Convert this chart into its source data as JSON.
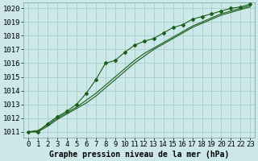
{
  "title": "Graphe pression niveau de la mer (hPa)",
  "bg_color": "#cce8e8",
  "grid_color": "#aacccc",
  "line_color": "#1a5e1a",
  "xlim_min": -0.5,
  "xlim_max": 23.5,
  "ylim_min": 1010.6,
  "ylim_max": 1020.4,
  "yticks": [
    1011,
    1012,
    1013,
    1014,
    1015,
    1016,
    1017,
    1018,
    1019,
    1020
  ],
  "xticks": [
    0,
    1,
    2,
    3,
    4,
    5,
    6,
    7,
    8,
    9,
    10,
    11,
    12,
    13,
    14,
    15,
    16,
    17,
    18,
    19,
    20,
    21,
    22,
    23
  ],
  "line_marker_x": [
    0,
    1,
    2,
    3,
    4,
    5,
    6,
    7,
    8,
    9,
    10,
    11,
    12,
    13,
    14,
    15,
    16,
    17,
    18,
    19,
    20,
    21,
    22,
    23
  ],
  "line_marker_y": [
    1011.0,
    1011.0,
    1011.6,
    1012.1,
    1012.5,
    1013.0,
    1013.8,
    1014.8,
    1016.0,
    1016.2,
    1016.8,
    1017.3,
    1017.6,
    1017.8,
    1018.2,
    1018.6,
    1018.8,
    1019.2,
    1019.4,
    1019.6,
    1019.8,
    1020.0,
    1020.1,
    1020.3
  ],
  "line_smooth1_x": [
    0,
    1,
    2,
    3,
    4,
    5,
    6,
    7,
    8,
    9,
    10,
    11,
    12,
    13,
    14,
    15,
    16,
    17,
    18,
    19,
    20,
    21,
    22,
    23
  ],
  "line_smooth1_y": [
    1011.0,
    1011.0,
    1011.4,
    1011.9,
    1012.3,
    1012.7,
    1013.1,
    1013.6,
    1014.2,
    1014.8,
    1015.4,
    1016.0,
    1016.5,
    1017.0,
    1017.4,
    1017.8,
    1018.2,
    1018.6,
    1018.9,
    1019.2,
    1019.5,
    1019.7,
    1019.9,
    1020.1
  ],
  "line_smooth2_x": [
    0,
    1,
    2,
    3,
    4,
    5,
    6,
    7,
    8,
    9,
    10,
    11,
    12,
    13,
    14,
    15,
    16,
    17,
    18,
    19,
    20,
    21,
    22,
    23
  ],
  "line_smooth2_y": [
    1011.0,
    1011.1,
    1011.5,
    1012.0,
    1012.4,
    1012.8,
    1013.3,
    1013.8,
    1014.4,
    1015.0,
    1015.6,
    1016.2,
    1016.7,
    1017.1,
    1017.5,
    1017.9,
    1018.3,
    1018.7,
    1019.0,
    1019.3,
    1019.6,
    1019.8,
    1020.0,
    1020.2
  ],
  "xlabel_fontsize": 6.5,
  "ylabel_fontsize": 6.5,
  "title_fontsize": 7.0
}
